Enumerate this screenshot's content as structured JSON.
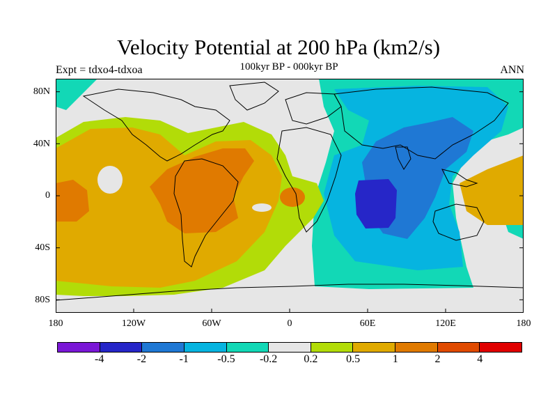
{
  "title": "Velocity Potential at 200 hPa (km2/s)",
  "subtitle": "100kyr BP - 000kyr BP",
  "experiment": "Expt = tdxo4-tdxoa",
  "season": "ANN",
  "lat_labels": [
    "80N",
    "40N",
    "0",
    "40S",
    "80S"
  ],
  "lon_labels": [
    "180",
    "120W",
    "60W",
    "0",
    "60E",
    "120E",
    "180"
  ],
  "colorbar": {
    "colors": [
      "#7a17d6",
      "#2626c8",
      "#1f78d4",
      "#06b4e0",
      "#12d8b6",
      "#e6e6e6",
      "#b2dc08",
      "#e0aa00",
      "#e07a00",
      "#e04a00",
      "#e00000"
    ],
    "labels": [
      "-4",
      "-2",
      "-1",
      "-0.5",
      "-0.2",
      "0.2",
      "0.5",
      "1",
      "2",
      "4"
    ]
  },
  "chart_data": {
    "type": "heatmap",
    "title": "Velocity Potential at 200 hPa (km2/s)",
    "subtitle": "100kyr BP - 000kyr BP",
    "projection": "cylindrical equidistant",
    "lon_range": [
      -180,
      180
    ],
    "lat_range": [
      -90,
      90
    ],
    "contour_levels": [
      -4,
      -2,
      -1,
      -0.5,
      -0.2,
      0.2,
      0.5,
      1,
      2,
      4
    ],
    "regions": [
      {
        "area": "Indian Ocean (center ~70E, 10S)",
        "value_range": [
          -4,
          -2
        ]
      },
      {
        "area": "Asia / western Pacific / Indian Ocean",
        "value_range": [
          -2,
          -1
        ]
      },
      {
        "area": "Eastern Hemisphere broad negative",
        "value_range": [
          -1,
          -0.2
        ]
      },
      {
        "area": "South America / tropical Atlantic (center ~60W, 10S)",
        "value_range": [
          1,
          2
        ]
      },
      {
        "area": "Central Pacific (center ~160W, 0)",
        "value_range": [
          1,
          2
        ]
      },
      {
        "area": "Western Hemisphere broad positive",
        "value_range": [
          0.2,
          1
        ]
      },
      {
        "area": "Polar regions / Europe / Africa",
        "value_range": [
          -0.2,
          0.2
        ]
      }
    ]
  }
}
